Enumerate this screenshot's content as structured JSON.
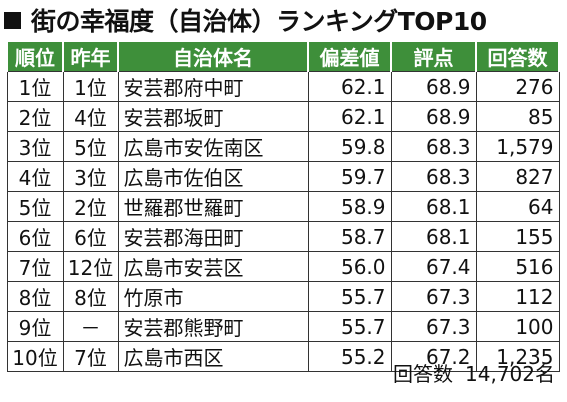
{
  "title": "街の幸福度（自治体）ランキングTOP10",
  "table": {
    "headers": [
      "順位",
      "昨年",
      "自治体名",
      "偏差値",
      "評点",
      "回答数"
    ],
    "rows": [
      [
        "1位",
        "1位",
        "安芸郡府中町",
        "62.1",
        "68.9",
        "276"
      ],
      [
        "2位",
        "4位",
        "安芸郡坂町",
        "62.1",
        "68.9",
        "85"
      ],
      [
        "3位",
        "5位",
        "広島市安佐南区",
        "59.8",
        "68.3",
        "1,579"
      ],
      [
        "4位",
        "3位",
        "広島市佐伯区",
        "59.7",
        "68.3",
        "827"
      ],
      [
        "5位",
        "2位",
        "世羅郡世羅町",
        "58.9",
        "68.1",
        "64"
      ],
      [
        "6位",
        "6位",
        "安芸郡海田町",
        "58.7",
        "68.1",
        "155"
      ],
      [
        "7位",
        "12位",
        "広島市安芸区",
        "56.0",
        "67.4",
        "516"
      ],
      [
        "8位",
        "8位",
        "竹原市",
        "55.7",
        "67.3",
        "112"
      ],
      [
        "9位",
        "－",
        "安芸郡熊野町",
        "55.7",
        "67.3",
        "100"
      ],
      [
        "10位",
        "7位",
        "広島市西区",
        "55.2",
        "67.2",
        "1,235"
      ]
    ]
  },
  "footer": {
    "label": "回答数",
    "value": "14,702名"
  },
  "colors": {
    "header_bg": "#3e8f3a",
    "header_text": "#ffffff"
  }
}
